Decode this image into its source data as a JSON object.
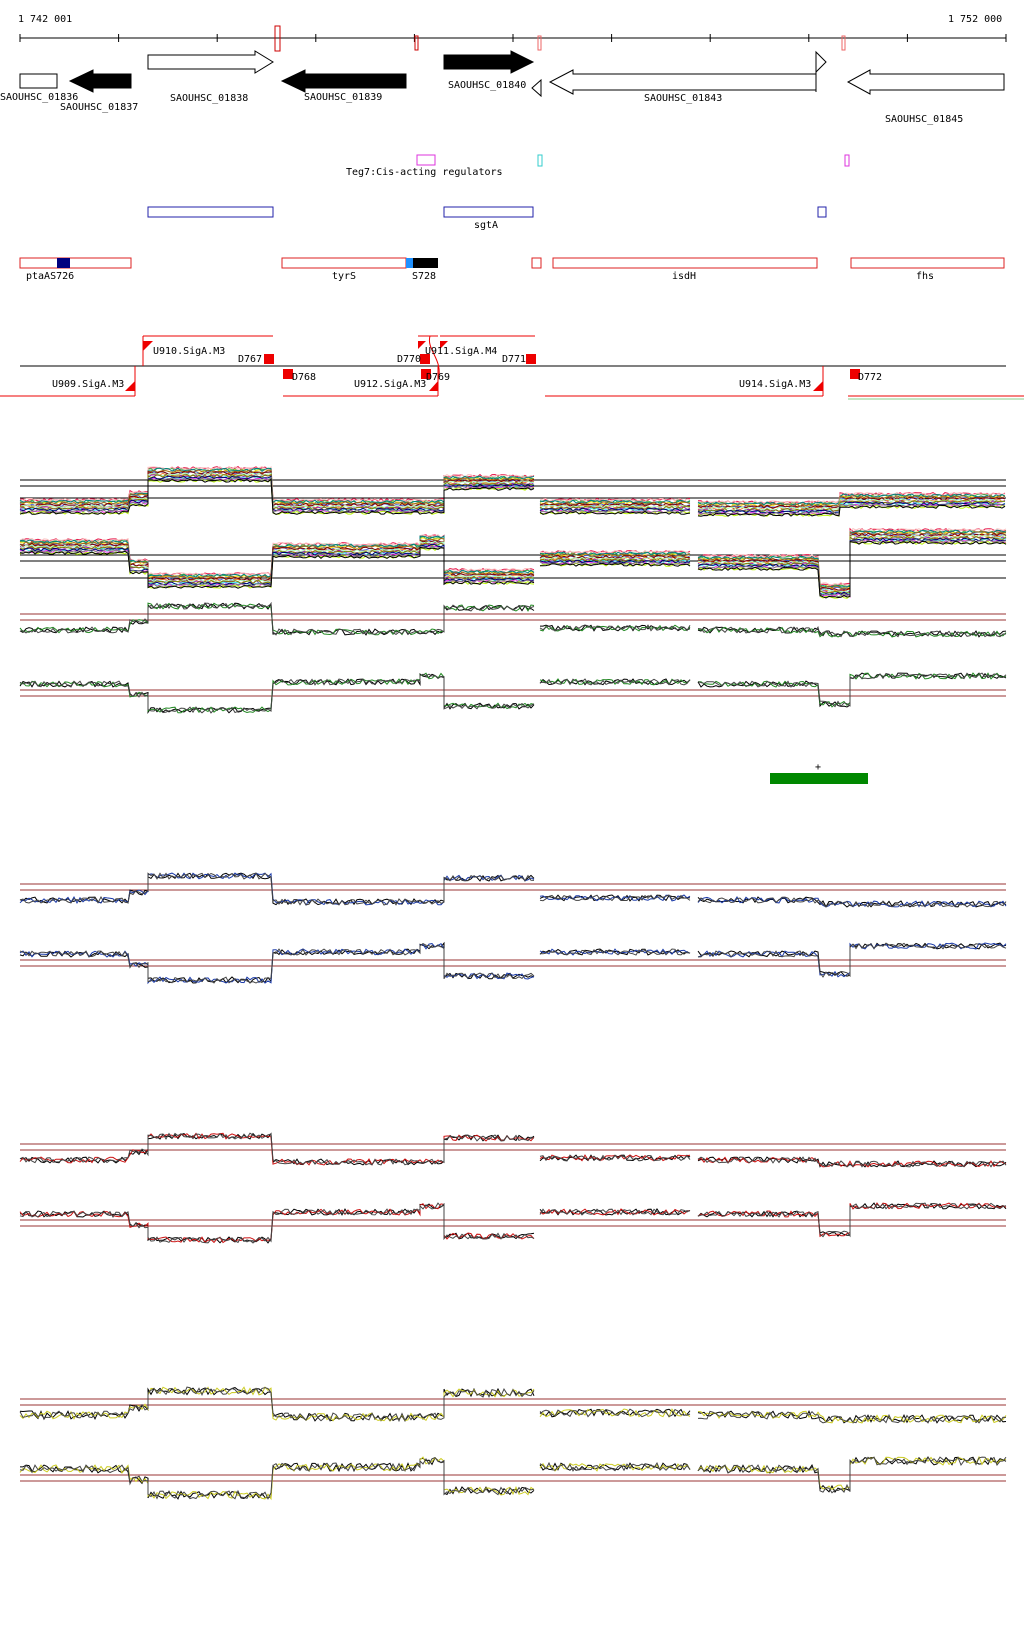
{
  "coordinates": {
    "start_label": "1 742 001",
    "end_label": "1 752 000"
  },
  "colors": {
    "gene_outline": "#000000",
    "gene_fill": "#000000",
    "regulator": "#dd33dd",
    "regulator_alt": "#33cccc",
    "sgt": "#2222aa",
    "operon": "#dd2222",
    "marker_navy": "#000080",
    "marker_cyan": "#1e90ff",
    "marker_black": "#000000",
    "sigma": "#ee0000",
    "green_band": "#008800",
    "track_green": "#228822",
    "track_blue": "#1a3aa8",
    "track_red": "#cc1111",
    "track_yellow": "#cccc22",
    "threshold": "#993333"
  },
  "genes": [
    {
      "label": "SAOUHSC_01836",
      "strand": "none",
      "filled": false
    },
    {
      "label": "SAOUHSC_01837",
      "strand": "reverse",
      "filled": true
    },
    {
      "label": "SAOUHSC_01838",
      "strand": "forward",
      "filled": false
    },
    {
      "label": "SAOUHSC_01839",
      "strand": "reverse",
      "filled": true
    },
    {
      "label": "SAOUHSC_01840",
      "strand": "forward",
      "filled": true
    },
    {
      "label": "SAOUHSC_01843",
      "strand": "reverse",
      "filled": false
    },
    {
      "label": "SAOUHSC_01845",
      "strand": "reverse",
      "filled": false
    }
  ],
  "regulator_label": "Teg7:Cis-acting regulators",
  "sgt_label": "sgtA",
  "operons": [
    {
      "label": "ptaAS726"
    },
    {
      "label": "tyrS"
    },
    {
      "label": "S728"
    },
    {
      "label": "isdH"
    },
    {
      "label": "fhs"
    }
  ],
  "sigma_labels": [
    {
      "label": "U910.SigA.M3"
    },
    {
      "label": "D767"
    },
    {
      "label": "D768"
    },
    {
      "label": "U909.SigA.M3"
    },
    {
      "label": "D770"
    },
    {
      "label": "U911.SigA.M4"
    },
    {
      "label": "D771"
    },
    {
      "label": "U912.SigA.M3"
    },
    {
      "label": "D769"
    },
    {
      "label": "U914.SigA.M3"
    },
    {
      "label": "D772"
    }
  ],
  "plus_label": "+"
}
